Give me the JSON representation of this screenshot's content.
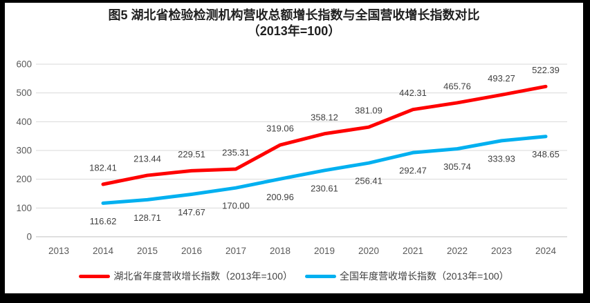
{
  "title": {
    "line1": "图5 湖北省检验检测机构营收总额增长指数与全国营收增长指数对比",
    "line2": "（2013年=100）"
  },
  "colors": {
    "hubei_series": "#FF0000",
    "national_series": "#00B0F0",
    "gridline": "#D9D9D9",
    "axis_line": "#BFBFBF",
    "tick_text": "#595959",
    "data_label": "#404040",
    "frame": "#000000",
    "background": "#FFFFFF"
  },
  "chart_data": {
    "type": "line",
    "title": "图5 湖北省检验检测机构营收总额增长指数与全国营收增长指数对比（2013年=100）",
    "categories": [
      "2013",
      "2014",
      "2015",
      "2016",
      "2017",
      "2018",
      "2019",
      "2020",
      "2021",
      "2022",
      "2023",
      "2024"
    ],
    "series": [
      {
        "name": "湖北省年度营收增长指数（2013年=100）",
        "color": "#FF0000",
        "label_position": "above",
        "values": [
          null,
          182.41,
          213.44,
          229.51,
          235.31,
          319.06,
          358.12,
          381.09,
          442.31,
          465.76,
          493.27,
          522.39
        ],
        "labels": [
          "",
          "182.41",
          "213.44",
          "229.51",
          "235.31",
          "319.06",
          "358.12",
          "381.09",
          "442.31",
          "465.76",
          "493.27",
          "522.39"
        ]
      },
      {
        "name": "全国年度营收增长指数（2013年=100）",
        "color": "#00B0F0",
        "label_position": "below",
        "values": [
          null,
          116.62,
          128.71,
          147.67,
          170.0,
          200.96,
          230.61,
          256.41,
          292.47,
          305.74,
          333.93,
          348.65
        ],
        "labels": [
          "",
          "116.62",
          "128.71",
          "147.67",
          "170.00",
          "200.96",
          "230.61",
          "256.41",
          "292.47",
          "305.74",
          "333.93",
          "348.65"
        ]
      }
    ],
    "x_axis": {
      "tick_labels": [
        "2013",
        "2014",
        "2015",
        "2016",
        "2017",
        "2018",
        "2019",
        "2020",
        "2021",
        "2022",
        "2023",
        "2024"
      ]
    },
    "y_axis": {
      "min": 0,
      "max": 600,
      "step": 100,
      "tick_labels": [
        "0",
        "100",
        "200",
        "300",
        "400",
        "500",
        "600"
      ]
    },
    "ylim": [
      0,
      600
    ],
    "grid": true,
    "legend_position": "bottom"
  }
}
